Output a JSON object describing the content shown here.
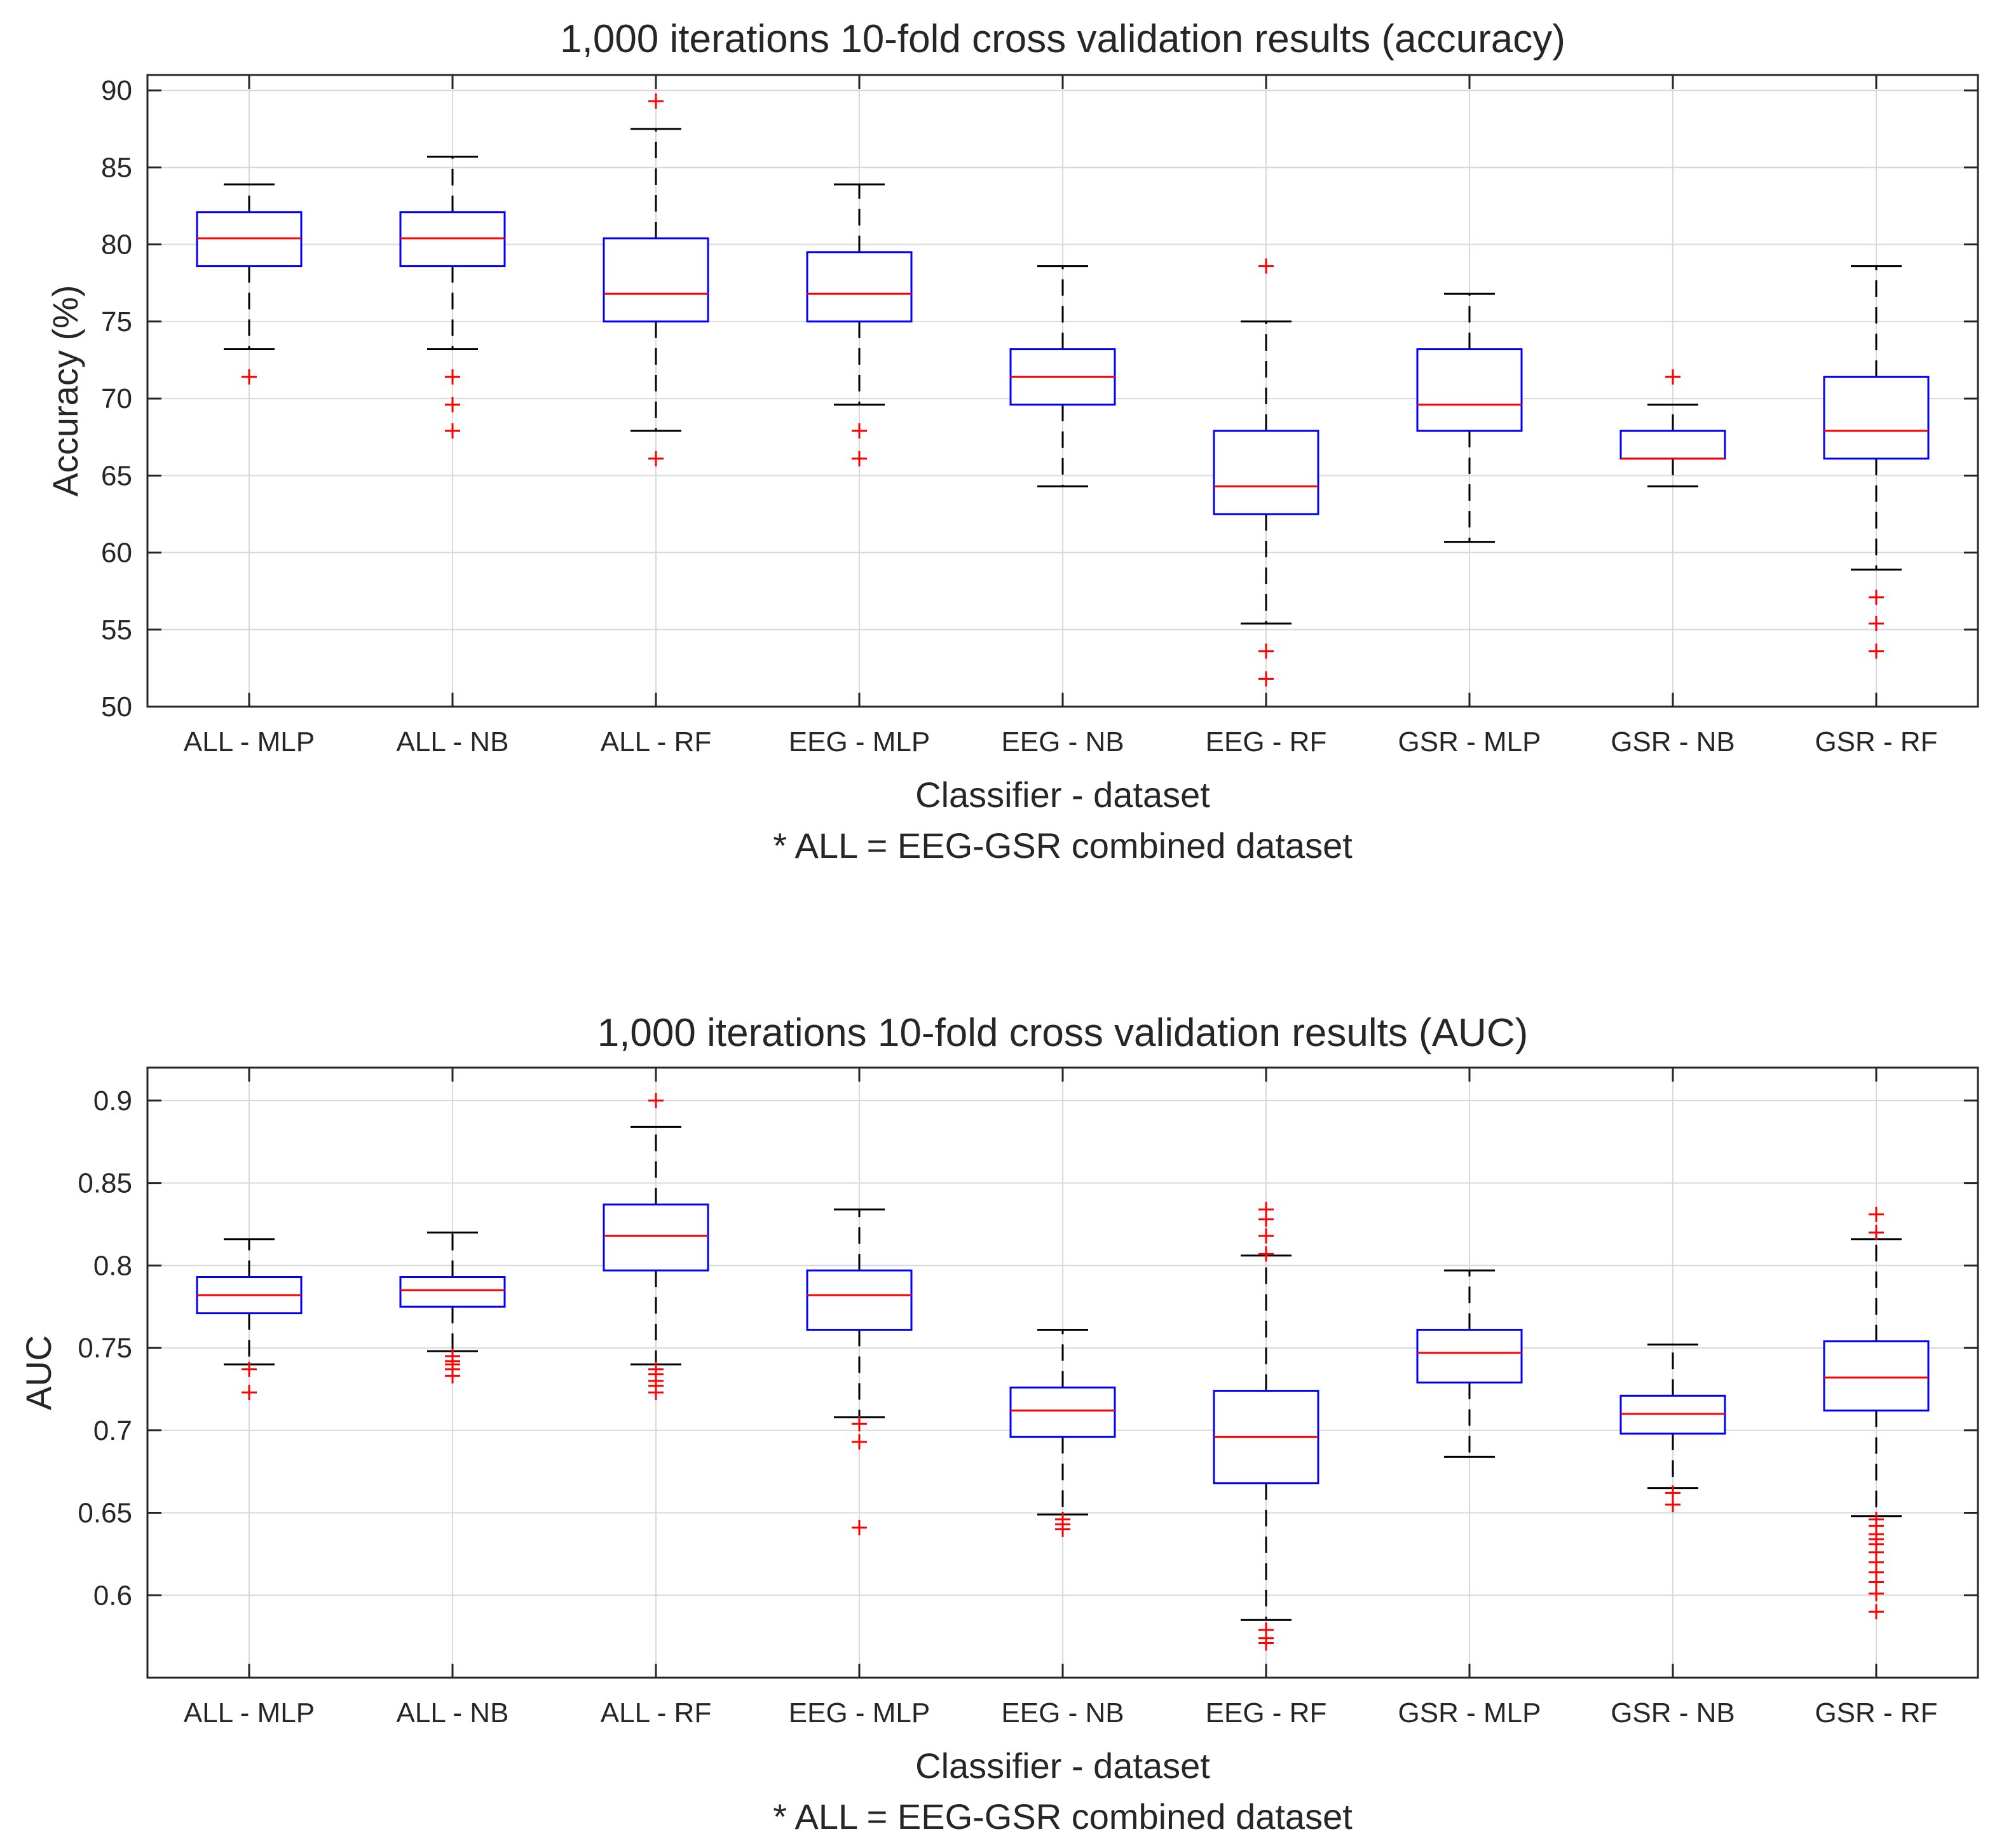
{
  "chart_data": [
    {
      "type": "box",
      "title": "1,000 iterations 10-fold cross validation results (accuracy)",
      "xlabel": "Classifier - dataset",
      "ylabel": "Accuracy (%)",
      "note": "* ALL = EEG-GSR combined dataset",
      "ylim": [
        50,
        91
      ],
      "yticks": [
        "50",
        "55",
        "60",
        "65",
        "70",
        "75",
        "80",
        "85",
        "90"
      ],
      "grid": true,
      "colors": {
        "box": "#0000ff",
        "median": "#ff0000",
        "whisker": "#000000",
        "outlier": "#ff0000",
        "grid": "#d9d9d9"
      },
      "categories": [
        "ALL - MLP",
        "ALL - NB",
        "ALL - RF",
        "EEG - MLP",
        "EEG - NB",
        "EEG - RF",
        "GSR - MLP",
        "GSR - NB",
        "GSR - RF"
      ],
      "boxes": [
        {
          "whisker_low": 73.2,
          "q1": 78.6,
          "median": 80.4,
          "q3": 82.1,
          "whisker_high": 83.9,
          "outliers": [
            71.4
          ]
        },
        {
          "whisker_low": 73.2,
          "q1": 78.6,
          "median": 80.4,
          "q3": 82.1,
          "whisker_high": 85.7,
          "outliers": [
            71.4,
            69.6,
            67.9
          ]
        },
        {
          "whisker_low": 67.9,
          "q1": 75.0,
          "median": 76.8,
          "q3": 80.4,
          "whisker_high": 87.5,
          "outliers": [
            89.3,
            66.1
          ]
        },
        {
          "whisker_low": 69.6,
          "q1": 75.0,
          "median": 76.8,
          "q3": 79.5,
          "whisker_high": 83.9,
          "outliers": [
            67.9,
            66.1
          ]
        },
        {
          "whisker_low": 64.3,
          "q1": 69.6,
          "median": 71.4,
          "q3": 73.2,
          "whisker_high": 78.6,
          "outliers": []
        },
        {
          "whisker_low": 55.4,
          "q1": 62.5,
          "median": 64.3,
          "q3": 67.9,
          "whisker_high": 75.0,
          "outliers": [
            78.6,
            53.6,
            51.8
          ]
        },
        {
          "whisker_low": 60.7,
          "q1": 67.9,
          "median": 69.6,
          "q3": 73.2,
          "whisker_high": 76.8,
          "outliers": []
        },
        {
          "whisker_low": 64.3,
          "q1": 66.1,
          "median": 66.1,
          "q3": 67.9,
          "whisker_high": 69.6,
          "outliers": [
            71.4
          ]
        },
        {
          "whisker_low": 58.9,
          "q1": 66.1,
          "median": 67.9,
          "q3": 71.4,
          "whisker_high": 78.6,
          "outliers": [
            57.1,
            55.4,
            53.6
          ]
        }
      ]
    },
    {
      "type": "box",
      "title": "1,000 iterations 10-fold cross validation results (AUC)",
      "xlabel": "Classifier - dataset",
      "ylabel": "AUC",
      "note": "* ALL = EEG-GSR combined dataset",
      "ylim": [
        0.55,
        0.92
      ],
      "yticks": [
        "0.6",
        "0.65",
        "0.7",
        "0.75",
        "0.8",
        "0.85",
        "0.9"
      ],
      "grid": true,
      "colors": {
        "box": "#0000ff",
        "median": "#ff0000",
        "whisker": "#000000",
        "outlier": "#ff0000",
        "grid": "#d9d9d9"
      },
      "categories": [
        "ALL - MLP",
        "ALL - NB",
        "ALL - RF",
        "EEG - MLP",
        "EEG - NB",
        "EEG - RF",
        "GSR - MLP",
        "GSR - NB",
        "GSR - RF"
      ],
      "boxes": [
        {
          "whisker_low": 0.74,
          "q1": 0.771,
          "median": 0.782,
          "q3": 0.793,
          "whisker_high": 0.816,
          "outliers": [
            0.737,
            0.723
          ]
        },
        {
          "whisker_low": 0.748,
          "q1": 0.775,
          "median": 0.785,
          "q3": 0.793,
          "whisker_high": 0.82,
          "outliers": [
            0.745,
            0.742,
            0.74,
            0.737,
            0.733
          ]
        },
        {
          "whisker_low": 0.74,
          "q1": 0.797,
          "median": 0.818,
          "q3": 0.837,
          "whisker_high": 0.884,
          "outliers": [
            0.9,
            0.737,
            0.734,
            0.73,
            0.727,
            0.723
          ]
        },
        {
          "whisker_low": 0.708,
          "q1": 0.761,
          "median": 0.782,
          "q3": 0.797,
          "whisker_high": 0.834,
          "outliers": [
            0.704,
            0.693,
            0.641
          ]
        },
        {
          "whisker_low": 0.649,
          "q1": 0.696,
          "median": 0.712,
          "q3": 0.726,
          "whisker_high": 0.761,
          "outliers": [
            0.646,
            0.643,
            0.64
          ]
        },
        {
          "whisker_low": 0.585,
          "q1": 0.668,
          "median": 0.696,
          "q3": 0.724,
          "whisker_high": 0.806,
          "outliers": [
            0.834,
            0.828,
            0.818,
            0.807,
            0.579,
            0.574,
            0.571
          ]
        },
        {
          "whisker_low": 0.684,
          "q1": 0.729,
          "median": 0.747,
          "q3": 0.761,
          "whisker_high": 0.797,
          "outliers": []
        },
        {
          "whisker_low": 0.665,
          "q1": 0.698,
          "median": 0.71,
          "q3": 0.721,
          "whisker_high": 0.752,
          "outliers": [
            0.662,
            0.655
          ]
        },
        {
          "whisker_low": 0.648,
          "q1": 0.712,
          "median": 0.732,
          "q3": 0.754,
          "whisker_high": 0.816,
          "outliers": [
            0.831,
            0.82,
            0.646,
            0.642,
            0.637,
            0.634,
            0.631,
            0.626,
            0.62,
            0.614,
            0.608,
            0.601,
            0.59
          ]
        }
      ]
    }
  ]
}
